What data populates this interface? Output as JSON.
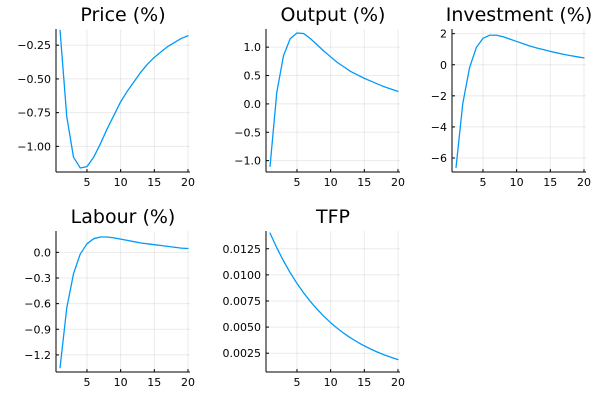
{
  "colors": {
    "series": "#009af9"
  },
  "chart_data": [
    {
      "type": "line",
      "title": "Price (%)",
      "xlim": [
        0.4,
        20.3
      ],
      "ylim": [
        -1.19,
        -0.13
      ],
      "xticks": [
        5,
        10,
        15,
        20
      ],
      "xtick_labels": [
        "5",
        "10",
        "15",
        "20"
      ],
      "yticks": [
        -1.0,
        -0.75,
        -0.5,
        -0.25
      ],
      "ytick_labels": [
        "−1.00",
        "−0.75",
        "−0.50",
        "−0.25"
      ],
      "series": [
        {
          "x": [
            1,
            2,
            3,
            4,
            5,
            6,
            7,
            8,
            9,
            10,
            11,
            12,
            13,
            14,
            15,
            16,
            17,
            18,
            19,
            20
          ],
          "y": [
            -0.14,
            -0.78,
            -1.08,
            -1.16,
            -1.15,
            -1.08,
            -0.98,
            -0.87,
            -0.77,
            -0.67,
            -0.59,
            -0.52,
            -0.45,
            -0.39,
            -0.34,
            -0.3,
            -0.26,
            -0.23,
            -0.2,
            -0.18
          ]
        }
      ]
    },
    {
      "type": "line",
      "title": "Output (%)",
      "xlim": [
        0.4,
        20.3
      ],
      "ylim": [
        -1.2,
        1.32
      ],
      "xticks": [
        5,
        10,
        15,
        20
      ],
      "xtick_labels": [
        "5",
        "10",
        "15",
        "20"
      ],
      "yticks": [
        -1.0,
        -0.5,
        0.0,
        0.5,
        1.0
      ],
      "ytick_labels": [
        "−1.0",
        "−0.5",
        "0.0",
        "0.5",
        "1.0"
      ],
      "series": [
        {
          "x": [
            1,
            2,
            3,
            4,
            5,
            6,
            7,
            8,
            9,
            10,
            11,
            12,
            13,
            14,
            15,
            16,
            17,
            18,
            19,
            20
          ],
          "y": [
            -1.1,
            0.2,
            0.85,
            1.15,
            1.25,
            1.24,
            1.15,
            1.04,
            0.93,
            0.83,
            0.73,
            0.65,
            0.57,
            0.51,
            0.45,
            0.4,
            0.35,
            0.3,
            0.26,
            0.22
          ]
        }
      ]
    },
    {
      "type": "line",
      "title": "Investment (%)",
      "xlim": [
        0.4,
        20.3
      ],
      "ylim": [
        -6.9,
        2.3
      ],
      "xticks": [
        5,
        10,
        15,
        20
      ],
      "xtick_labels": [
        "5",
        "10",
        "15",
        "20"
      ],
      "yticks": [
        -6,
        -4,
        -2,
        0,
        2
      ],
      "ytick_labels": [
        "−6",
        "−4",
        "−2",
        "0",
        "2"
      ],
      "series": [
        {
          "x": [
            1,
            2,
            3,
            4,
            5,
            6,
            7,
            8,
            9,
            10,
            11,
            12,
            13,
            14,
            15,
            16,
            17,
            18,
            19,
            20
          ],
          "y": [
            -6.6,
            -2.5,
            -0.2,
            1.1,
            1.7,
            1.9,
            1.9,
            1.8,
            1.65,
            1.5,
            1.35,
            1.2,
            1.08,
            0.97,
            0.86,
            0.76,
            0.67,
            0.59,
            0.51,
            0.44
          ]
        }
      ]
    },
    {
      "type": "line",
      "title": "Labour (%)",
      "xlim": [
        0.4,
        20.3
      ],
      "ylim": [
        -1.4,
        0.25
      ],
      "xticks": [
        5,
        10,
        15,
        20
      ],
      "xtick_labels": [
        "5",
        "10",
        "15",
        "20"
      ],
      "yticks": [
        -1.2,
        -0.9,
        -0.6,
        -0.3,
        0.0
      ],
      "ytick_labels": [
        "−1.2",
        "−0.9",
        "−0.6",
        "−0.3",
        "0.0"
      ],
      "series": [
        {
          "x": [
            1,
            2,
            3,
            4,
            5,
            6,
            7,
            8,
            9,
            10,
            11,
            12,
            13,
            14,
            15,
            16,
            17,
            18,
            19,
            20
          ],
          "y": [
            -1.35,
            -0.65,
            -0.25,
            -0.02,
            0.1,
            0.16,
            0.18,
            0.18,
            0.17,
            0.155,
            0.14,
            0.125,
            0.11,
            0.1,
            0.09,
            0.08,
            0.07,
            0.06,
            0.05,
            0.045
          ]
        }
      ]
    },
    {
      "type": "line",
      "title": "TFP",
      "xlim": [
        0.4,
        20.3
      ],
      "ylim": [
        0.0007,
        0.0142
      ],
      "xticks": [
        5,
        10,
        15,
        20
      ],
      "xtick_labels": [
        "5",
        "10",
        "15",
        "20"
      ],
      "yticks": [
        0.0025,
        0.005,
        0.0075,
        0.01,
        0.0125
      ],
      "ytick_labels": [
        "0.0025",
        "0.0050",
        "0.0075",
        "0.0100",
        "0.0125"
      ],
      "series": [
        {
          "x": [
            1,
            2,
            3,
            4,
            5,
            6,
            7,
            8,
            9,
            10,
            11,
            12,
            13,
            14,
            15,
            16,
            17,
            18,
            19,
            20
          ],
          "y": [
            0.014,
            0.0126,
            0.01134,
            0.0102,
            0.00918,
            0.00827,
            0.00744,
            0.0067,
            0.00603,
            0.00542,
            0.00488,
            0.00439,
            0.00395,
            0.00356,
            0.0032,
            0.00288,
            0.00259,
            0.00233,
            0.0021,
            0.00189
          ]
        }
      ]
    }
  ]
}
